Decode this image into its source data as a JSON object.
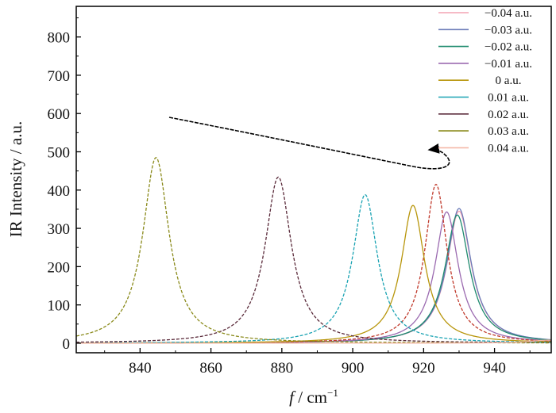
{
  "chart_data": {
    "type": "line",
    "xlabel_italic": "f",
    "xlabel_rest": " / cm",
    "xlabel_sup": "−1",
    "ylabel": "IR Intensity / a.u.",
    "xlim": [
      822,
      956
    ],
    "ylim": [
      -25,
      880
    ],
    "x_ticks": [
      840,
      860,
      880,
      900,
      920,
      940
    ],
    "y_ticks": [
      0,
      100,
      200,
      300,
      400,
      500,
      600,
      700,
      800
    ],
    "grid": false,
    "legend_position": "top-right",
    "annotation": "curved arrow indicating peak shift direction",
    "series": [
      {
        "name": "−0.04 a.u.",
        "color": "#f4a3b4",
        "peak_x": 930.0,
        "peak_y": 345,
        "hwhm": 4.2,
        "dash": "none"
      },
      {
        "name": "−0.03 a.u.",
        "color": "#6b7bb8",
        "peak_x": 930.0,
        "peak_y": 352,
        "hwhm": 4.2,
        "dash": "none"
      },
      {
        "name": "−0.02 a.u.",
        "color": "#1e8a6e",
        "peak_x": 929.5,
        "peak_y": 335,
        "hwhm": 4.2,
        "dash": "none"
      },
      {
        "name": "−0.01 a.u.",
        "color": "#9b6ab0",
        "peak_x": 926.5,
        "peak_y": 343,
        "hwhm": 4.0,
        "dash": "none"
      },
      {
        "name": "0 a.u.",
        "color": "#c0392b",
        "peak_x": 923.5,
        "peak_y": 415,
        "hwhm": 3.8,
        "dash": "4 2"
      },
      {
        "name": "0 a.u.",
        "color": "#b8960c",
        "peak_x": 917.0,
        "peak_y": 360,
        "hwhm": 4.0,
        "dash": "none"
      },
      {
        "name": "0.01 a.u.",
        "color": "#1aa3b3",
        "peak_x": 903.5,
        "peak_y": 388,
        "hwhm": 4.2,
        "dash": "4 2"
      },
      {
        "name": "0.02 a.u.",
        "color": "#5a2a3a",
        "peak_x": 879.0,
        "peak_y": 434,
        "hwhm": 4.5,
        "dash": "4 2"
      },
      {
        "name": "0.03 a.u.",
        "color": "#8a8a1a",
        "peak_x": 844.5,
        "peak_y": 485,
        "hwhm": 4.5,
        "dash": "4 2"
      },
      {
        "name": "0.04 a.u.",
        "color": "#f4b8a8",
        "peak_x": 955.0,
        "peak_y": 8,
        "hwhm": 6.0,
        "dash": "none"
      }
    ],
    "legend": [
      {
        "label": "−0.04 a.u.",
        "color": "#f4a3b4"
      },
      {
        "label": "−0.03 a.u.",
        "color": "#6b7bb8"
      },
      {
        "label": "−0.02 a.u.",
        "color": "#1e8a6e"
      },
      {
        "label": "−0.01 a.u.",
        "color": "#9b6ab0"
      },
      {
        "label": "0 a.u.",
        "color": "#b8960c"
      },
      {
        "label": "0.01 a.u.",
        "color": "#1aa3b3"
      },
      {
        "label": "0.02 a.u.",
        "color": "#5a2a3a"
      },
      {
        "label": "0.03 a.u.",
        "color": "#8a8a1a"
      },
      {
        "label": "0.04 a.u.",
        "color": "#f4b8a8"
      }
    ]
  }
}
